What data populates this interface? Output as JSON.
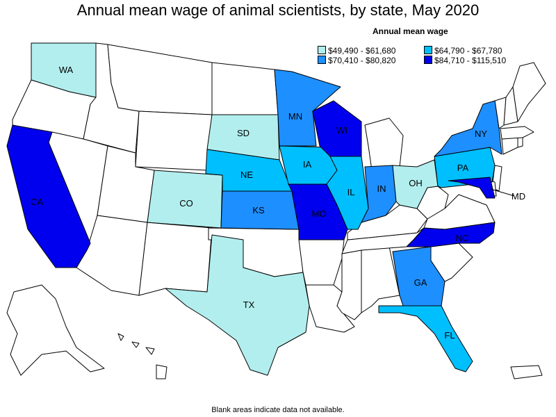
{
  "title": "Annual mean wage of animal scientists, by state, May 2020",
  "legend": {
    "title": "Annual mean wage",
    "ranges": [
      {
        "label": "$49,490 - $61,680",
        "color": "#b2eeee"
      },
      {
        "label": "$64,790 - $67,780",
        "color": "#00bfff"
      },
      {
        "label": "$70,410 - $80,820",
        "color": "#1e8fff"
      },
      {
        "label": "$84,710 - $115,510",
        "color": "#0000ee"
      }
    ]
  },
  "footnote": "Blank areas indicate data not available.",
  "states": [
    {
      "abbr": "WA",
      "tier": 0
    },
    {
      "abbr": "SD",
      "tier": 0
    },
    {
      "abbr": "CO",
      "tier": 0
    },
    {
      "abbr": "OH",
      "tier": 0
    },
    {
      "abbr": "TX",
      "tier": 0
    },
    {
      "abbr": "NE",
      "tier": 1
    },
    {
      "abbr": "IA",
      "tier": 1
    },
    {
      "abbr": "IL",
      "tier": 1
    },
    {
      "abbr": "PA",
      "tier": 1
    },
    {
      "abbr": "FL",
      "tier": 1
    },
    {
      "abbr": "MN",
      "tier": 2
    },
    {
      "abbr": "KS",
      "tier": 2
    },
    {
      "abbr": "IN",
      "tier": 2
    },
    {
      "abbr": "NY",
      "tier": 2
    },
    {
      "abbr": "GA",
      "tier": 2
    },
    {
      "abbr": "CA",
      "tier": 3
    },
    {
      "abbr": "WI",
      "tier": 3
    },
    {
      "abbr": "MO",
      "tier": 3
    },
    {
      "abbr": "NC",
      "tier": 3
    },
    {
      "abbr": "MD",
      "tier": 3
    }
  ]
}
